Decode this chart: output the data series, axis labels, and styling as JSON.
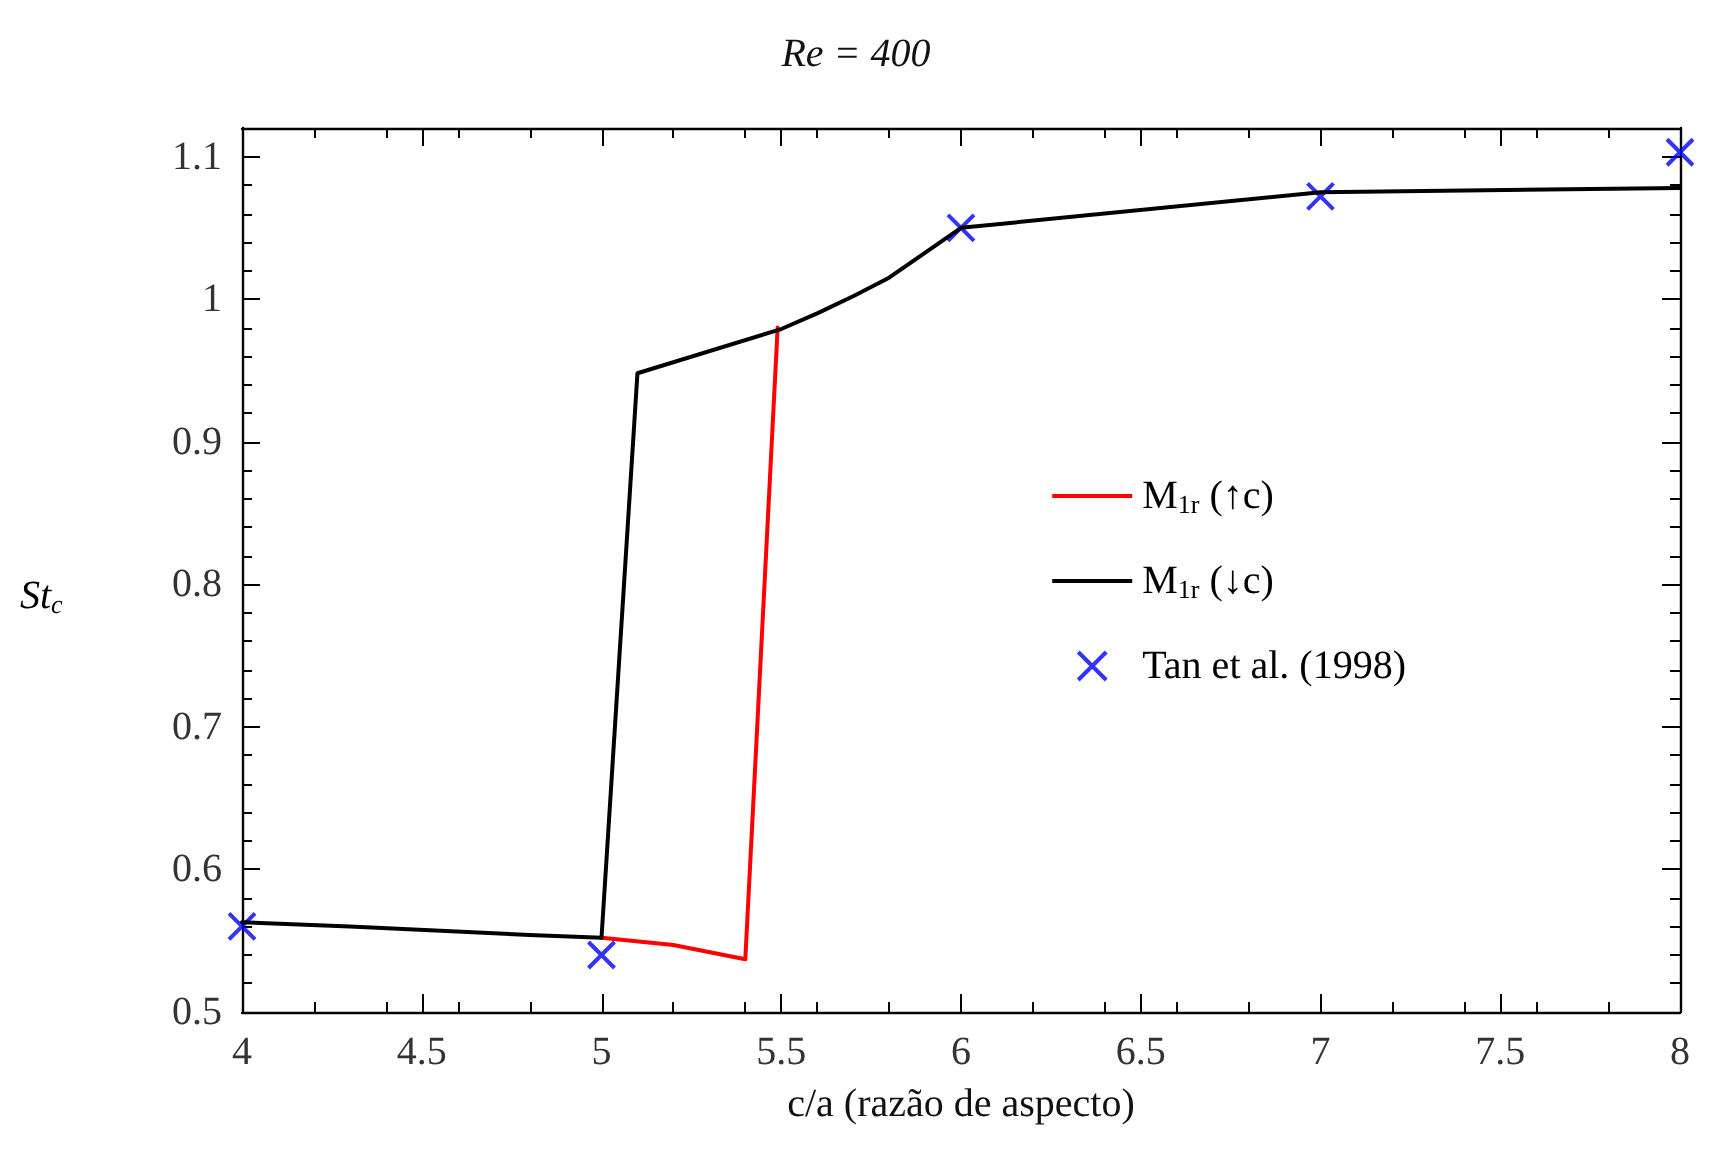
{
  "chart_data": {
    "type": "line",
    "title": "Re = 400",
    "xlabel": "c/a (razão de aspecto)",
    "ylabel": "St$_{c}$",
    "xlim": [
      4,
      8
    ],
    "xticks": [
      4,
      4.5,
      5,
      5.5,
      6,
      6.5,
      7,
      7.5,
      8
    ],
    "ylim": [
      0.5,
      1.12
    ],
    "yticks": [
      0.5,
      0.6,
      0.7,
      0.8,
      0.9,
      1,
      1.1
    ],
    "grid": false,
    "legend": "right",
    "line_style": "solid",
    "series": [
      {
        "name": "M$_{1r}$ (↑c)",
        "color": "#ff0000",
        "x": [
          5.0,
          5.2,
          5.4,
          5.49
        ],
        "values": [
          0.552,
          0.547,
          0.537,
          0.98
        ]
      },
      {
        "name": "M$_{1r}$ (↓c)",
        "color": "#000000",
        "x": [
          8.0,
          7.0,
          6.0,
          5.8,
          5.7,
          5.6,
          5.5,
          5.1,
          5.0,
          4.8,
          4.3,
          4.0
        ],
        "values": [
          1.078,
          1.075,
          1.05,
          1.015,
          1.002,
          0.99,
          0.979,
          0.948,
          0.552,
          0.554,
          0.56,
          0.563
        ]
      },
      {
        "name": "Tan et al. (1998)",
        "type": "scatter",
        "marker": "cross",
        "color": "#0000ff",
        "x": [
          4,
          5,
          6,
          7,
          8
        ],
        "values": [
          0.56,
          0.54,
          1.05,
          1.072,
          1.103
        ]
      }
    ]
  }
}
